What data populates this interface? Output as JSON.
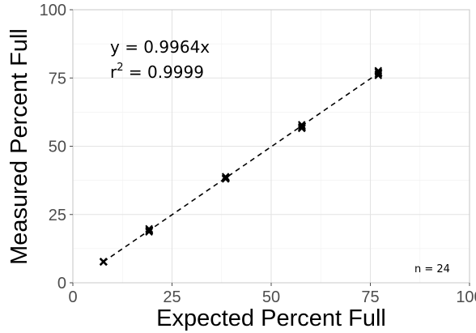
{
  "chart_data": {
    "type": "scatter",
    "title": "",
    "xlabel": "Expected Percent Full",
    "ylabel": "Measured Percent Full",
    "xlim": [
      0,
      100
    ],
    "ylim": [
      0,
      100
    ],
    "x_ticks": [
      "0",
      "25",
      "50",
      "75",
      "100"
    ],
    "y_ticks": [
      "0",
      "25",
      "50",
      "75",
      "100"
    ],
    "grid": true,
    "marker": "x",
    "points": [
      {
        "x": 7.7,
        "y": 7.6
      },
      {
        "x": 7.7,
        "y": 7.7
      },
      {
        "x": 7.7,
        "y": 7.8
      },
      {
        "x": 7.8,
        "y": 7.7
      },
      {
        "x": 19.2,
        "y": 18.6
      },
      {
        "x": 19.2,
        "y": 19.1
      },
      {
        "x": 19.3,
        "y": 19.4
      },
      {
        "x": 19.2,
        "y": 19.8
      },
      {
        "x": 38.5,
        "y": 38.0
      },
      {
        "x": 38.5,
        "y": 38.3
      },
      {
        "x": 38.6,
        "y": 38.6
      },
      {
        "x": 38.5,
        "y": 38.9
      },
      {
        "x": 57.7,
        "y": 56.5
      },
      {
        "x": 57.7,
        "y": 57.0
      },
      {
        "x": 57.8,
        "y": 57.4
      },
      {
        "x": 57.7,
        "y": 57.9
      },
      {
        "x": 77.0,
        "y": 75.9
      },
      {
        "x": 77.0,
        "y": 76.4
      },
      {
        "x": 77.1,
        "y": 76.8
      },
      {
        "x": 77.0,
        "y": 77.3
      },
      {
        "x": 77.0,
        "y": 77.7
      },
      {
        "x": 57.8,
        "y": 56.8
      },
      {
        "x": 19.3,
        "y": 19.0
      },
      {
        "x": 38.6,
        "y": 38.2
      }
    ],
    "fit": {
      "type": "linear-through-origin",
      "slope": 0.9964,
      "x_range": [
        7.7,
        77.0
      ],
      "style": "dashed"
    },
    "annotations": {
      "equation": "y = 0.9964x",
      "r2_base": "r",
      "r2_sup": "2",
      "r2_rest": " = 0.9999",
      "n_label": "n = 24"
    }
  },
  "colors": {
    "points": "#000000",
    "fit_line": "#000000",
    "grid": "#e3e3e3",
    "panel_border": "#c8c8c8"
  }
}
